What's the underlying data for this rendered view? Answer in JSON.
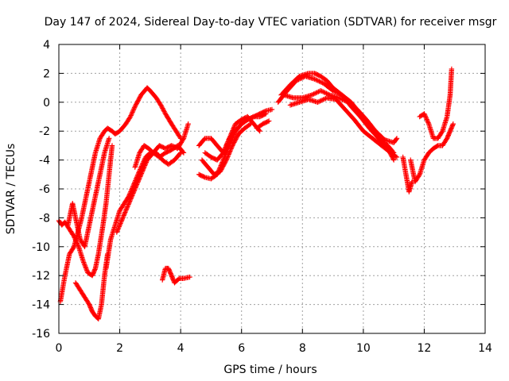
{
  "chart_data": {
    "type": "scatter",
    "title": "Day 147 of 2024, Sidereal Day-to-day VTEC variation (SDTVAR) for receiver msgr",
    "xlabel": "GPS time / hours",
    "ylabel": "SDTVAR / TECUs",
    "xlim": [
      0,
      14
    ],
    "ylim": [
      -16,
      4
    ],
    "xticks": [
      0,
      2,
      4,
      6,
      8,
      10,
      12,
      14
    ],
    "yticks": [
      4,
      2,
      0,
      -2,
      -4,
      -6,
      -8,
      -10,
      -12,
      -14,
      -16
    ],
    "grid": true,
    "marker": "+",
    "color": "#ff0000",
    "series": [
      {
        "x": [
          0.0,
          0.1,
          0.2,
          0.35,
          0.5,
          0.65,
          0.8,
          0.95,
          1.1,
          1.2,
          1.3,
          1.45,
          1.55,
          1.65,
          1.75
        ],
        "y": [
          -8.2,
          -8.5,
          -8.3,
          -8.8,
          -9.3,
          -10.0,
          -11.0,
          -11.8,
          -12.0,
          -11.5,
          -10.5,
          -8.5,
          -7.0,
          -5.0,
          -3.0
        ]
      },
      {
        "x": [
          0.05,
          0.2,
          0.35,
          0.5,
          0.6,
          0.75,
          0.9,
          1.05,
          1.2,
          1.35,
          1.5,
          1.6,
          1.75,
          1.85,
          2.0,
          2.2,
          2.35,
          2.5,
          2.7,
          2.9,
          3.0,
          3.2,
          3.35,
          3.5,
          3.7,
          3.85,
          4.0
        ],
        "y": [
          -13.8,
          -12.0,
          -10.5,
          -10.0,
          -9.2,
          -8.0,
          -6.5,
          -5.0,
          -3.5,
          -2.5,
          -2.0,
          -1.8,
          -2.0,
          -2.2,
          -2.0,
          -1.5,
          -1.0,
          -0.3,
          0.5,
          1.0,
          0.8,
          0.3,
          -0.2,
          -0.8,
          -1.5,
          -2.0,
          -2.5
        ]
      },
      {
        "x": [
          0.55,
          0.7,
          0.85,
          1.0,
          1.1,
          1.2,
          1.3,
          1.4,
          1.5,
          1.6
        ],
        "y": [
          -12.5,
          -13.0,
          -13.5,
          -14.0,
          -14.5,
          -14.8,
          -15.0,
          -14.0,
          -12.0,
          -10.5
        ]
      },
      {
        "x": [
          0.3,
          0.45,
          0.55,
          0.7,
          0.85,
          0.95,
          1.1,
          1.25,
          1.35,
          1.5,
          1.65
        ],
        "y": [
          -8.5,
          -7.0,
          -8.0,
          -9.5,
          -10.0,
          -9.0,
          -7.5,
          -6.0,
          -5.0,
          -3.5,
          -2.5
        ]
      },
      {
        "x": [
          1.55,
          1.7,
          1.85,
          2.0,
          2.15,
          2.3,
          2.5,
          2.7,
          2.85,
          3.0,
          3.2,
          3.4,
          3.6,
          3.8,
          4.0
        ],
        "y": [
          -11.5,
          -9.5,
          -8.5,
          -7.5,
          -7.0,
          -6.5,
          -5.5,
          -4.5,
          -3.8,
          -3.5,
          -3.5,
          -4.0,
          -4.3,
          -4.0,
          -3.5
        ]
      },
      {
        "x": [
          1.9,
          2.1,
          2.3,
          2.5,
          2.7,
          2.9,
          3.1,
          3.3,
          3.5,
          3.7,
          3.9,
          4.1,
          4.25
        ],
        "y": [
          -9.0,
          -8.0,
          -7.0,
          -6.0,
          -5.0,
          -4.0,
          -3.5,
          -3.0,
          -3.2,
          -3.0,
          -3.2,
          -2.5,
          -1.5
        ]
      },
      {
        "x": [
          2.5,
          2.65,
          2.8,
          2.95,
          3.1,
          3.3,
          3.5,
          3.7,
          3.9,
          4.1
        ],
        "y": [
          -4.5,
          -3.5,
          -3.0,
          -3.2,
          -3.5,
          -3.8,
          -3.5,
          -3.3,
          -3.0,
          -3.5
        ]
      },
      {
        "x": [
          3.4,
          3.5,
          3.6,
          3.7,
          3.8,
          3.95,
          4.1,
          4.3
        ],
        "y": [
          -12.3,
          -11.5,
          -11.5,
          -12.0,
          -12.5,
          -12.2,
          -12.2,
          -12.1
        ]
      },
      {
        "x": [
          4.6,
          4.8,
          5.0,
          5.2,
          5.4,
          5.6,
          5.8,
          6.0,
          6.2,
          6.4,
          6.6,
          6.8,
          7.0
        ],
        "y": [
          -5.0,
          -5.2,
          -5.3,
          -5.0,
          -4.0,
          -3.0,
          -2.0,
          -1.5,
          -1.2,
          -1.0,
          -0.8,
          -0.6,
          -0.5
        ]
      },
      {
        "x": [
          4.6,
          4.8,
          5.0,
          5.2,
          5.4,
          5.6,
          5.8,
          6.0,
          6.2,
          6.4,
          6.6
        ],
        "y": [
          -3.0,
          -2.5,
          -2.5,
          -3.0,
          -3.5,
          -2.5,
          -1.5,
          -1.2,
          -1.0,
          -1.5,
          -2.0
        ]
      },
      {
        "x": [
          4.7,
          4.9,
          5.1,
          5.3,
          5.5,
          5.7,
          5.9,
          6.1,
          6.3
        ],
        "y": [
          -4.0,
          -4.5,
          -5.0,
          -4.8,
          -4.0,
          -3.0,
          -2.2,
          -1.8,
          -1.5
        ]
      },
      {
        "x": [
          4.8,
          5.0,
          5.2,
          5.4,
          5.6,
          5.8,
          6.0,
          6.2,
          6.4,
          6.6,
          6.8
        ],
        "y": [
          -3.5,
          -3.8,
          -4.0,
          -3.5,
          -2.5,
          -2.0,
          -1.5,
          -1.2,
          -1.0,
          -1.0,
          -0.8
        ]
      },
      {
        "x": [
          6.5,
          6.7,
          6.9
        ],
        "y": [
          -1.8,
          -1.5,
          -1.3
        ]
      },
      {
        "x": [
          7.3,
          7.6,
          7.9,
          8.2,
          8.4,
          8.6,
          8.8,
          9.0,
          9.3,
          9.6,
          9.9,
          10.2,
          10.5,
          10.8,
          11.0
        ],
        "y": [
          0.5,
          1.2,
          1.8,
          2.0,
          2.0,
          1.8,
          1.5,
          1.0,
          0.5,
          -0.3,
          -1.0,
          -1.8,
          -2.5,
          -3.0,
          -3.5
        ]
      },
      {
        "x": [
          7.2,
          7.5,
          7.8,
          8.1,
          8.4,
          8.7,
          9.0,
          9.3,
          9.6,
          9.9,
          10.2,
          10.5,
          10.8,
          11.0
        ],
        "y": [
          0.0,
          0.8,
          1.5,
          1.8,
          1.6,
          1.3,
          0.8,
          0.5,
          0.0,
          -0.8,
          -1.5,
          -2.5,
          -3.2,
          -4.0
        ]
      },
      {
        "x": [
          7.4,
          7.7,
          8.0,
          8.3,
          8.6,
          8.9,
          9.2,
          9.5,
          9.8,
          10.1,
          10.4,
          10.7,
          11.0,
          11.1
        ],
        "y": [
          0.5,
          0.3,
          0.3,
          0.5,
          0.8,
          0.5,
          0.3,
          0.0,
          -0.5,
          -1.2,
          -2.0,
          -2.6,
          -2.8,
          -2.5
        ]
      },
      {
        "x": [
          7.6,
          7.9,
          8.2,
          8.5,
          8.8,
          9.1,
          9.4,
          9.7,
          10.0,
          10.3,
          10.6,
          10.9,
          11.1
        ],
        "y": [
          -0.2,
          0.0,
          0.2,
          0.0,
          0.3,
          0.2,
          -0.5,
          -1.2,
          -2.0,
          -2.5,
          -3.0,
          -3.5,
          -3.8
        ]
      },
      {
        "x": [
          11.3,
          11.4,
          11.5,
          11.6
        ],
        "y": [
          -3.8,
          -5.0,
          -6.2,
          -5.5
        ]
      },
      {
        "x": [
          11.55,
          11.7,
          11.85,
          12.0,
          12.15,
          12.3,
          12.45,
          12.6,
          12.75,
          12.85,
          12.95
        ],
        "y": [
          -4.0,
          -5.5,
          -5.0,
          -4.0,
          -3.5,
          -3.2,
          -3.0,
          -3.0,
          -2.5,
          -2.0,
          -1.5
        ]
      },
      {
        "x": [
          11.85,
          12.0,
          12.15,
          12.3,
          12.45,
          12.6,
          12.75,
          12.85,
          12.9
        ],
        "y": [
          -1.0,
          -0.8,
          -1.5,
          -2.5,
          -2.5,
          -2.0,
          -1.0,
          0.5,
          2.3
        ]
      }
    ]
  }
}
